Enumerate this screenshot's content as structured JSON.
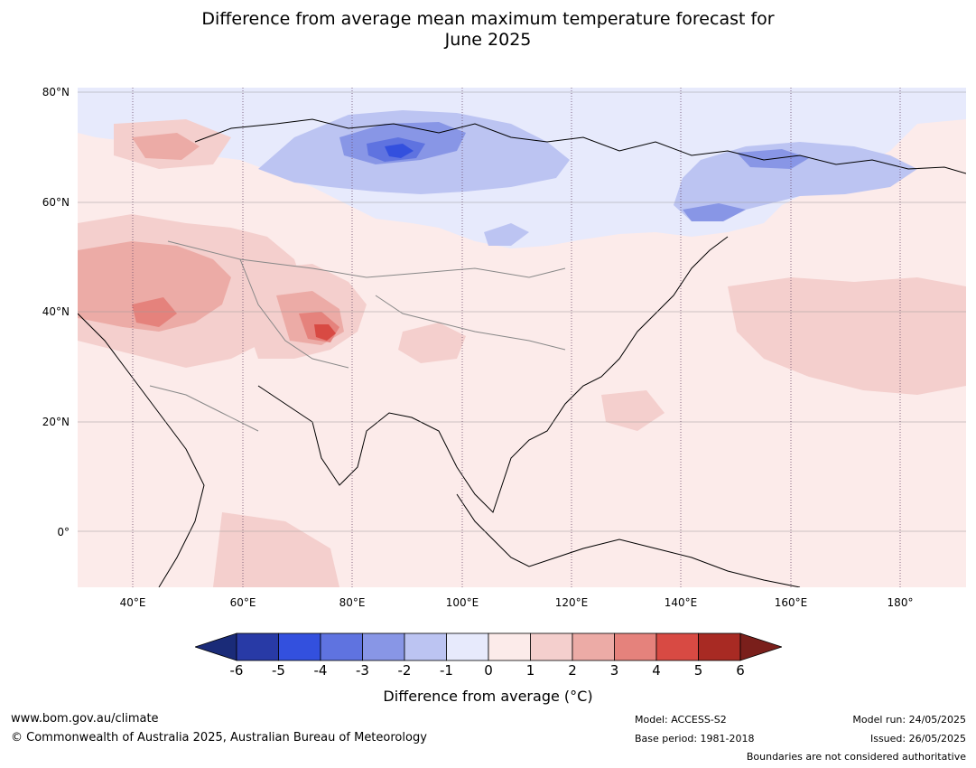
{
  "title_line1": "Difference from average mean maximum temperature forecast for",
  "title_line2": "June 2025",
  "lat_labels": [
    "80°N",
    "60°N",
    "40°N",
    "20°N",
    "0°"
  ],
  "lon_labels": [
    "40°E",
    "60°E",
    "80°E",
    "100°E",
    "120°E",
    "140°E",
    "160°E",
    "180°"
  ],
  "colorbar": {
    "ticks": [
      "-6",
      "-5",
      "-4",
      "-3",
      "-2",
      "-1",
      "0",
      "1",
      "2",
      "3",
      "4",
      "5",
      "6"
    ],
    "colors": [
      "#283aa6",
      "#3350de",
      "#5f73e0",
      "#8896e6",
      "#bcc4f2",
      "#e7eafc",
      "#fcebea",
      "#f4cfcd",
      "#ecaba6",
      "#e5827c",
      "#d84a43",
      "#a82a23"
    ],
    "low_extend_color": "#1a2b78",
    "high_extend_color": "#7a1f1b",
    "label": "Difference from average (°C)"
  },
  "footer": {
    "website": "www.bom.gov.au/climate",
    "copyright": "© Commonwealth of Australia 2025, Australian Bureau of Meteorology",
    "model": "Model: ACCESS-S2",
    "base_period": "Base period: 1981-2018",
    "model_run": "Model run: 24/05/2025",
    "issued": "Issued: 26/05/2025",
    "disclaimer": "Boundaries are not considered authoritative"
  }
}
